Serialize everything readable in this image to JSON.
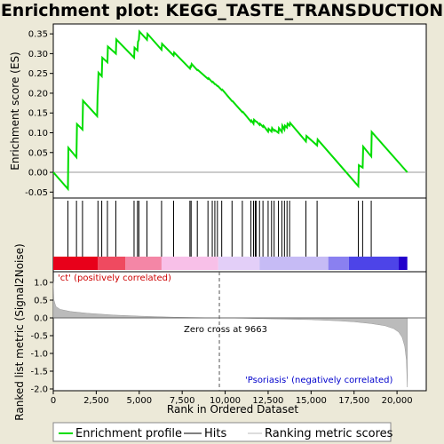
{
  "title": "Enrichment plot: KEGG_TASTE_TRANSDUCTION",
  "chart_data": {
    "type": "line",
    "title": "Enrichment plot: KEGG_TASTE_TRANSDUCTION",
    "top_panel": {
      "ylabel": "Enrichment score (ES)",
      "ylim": [
        -0.065,
        0.375
      ],
      "yticks": [
        -0.05,
        0.0,
        0.05,
        0.1,
        0.15,
        0.2,
        0.25,
        0.3,
        0.35
      ],
      "ytick_labels": [
        "-0.05",
        "0.00",
        "0.05",
        "0.10",
        "0.15",
        "0.20",
        "0.25",
        "0.30",
        "0.35"
      ],
      "series": [
        {
          "name": "Enrichment profile",
          "color": "#00dd00",
          "x": [
            0,
            850,
            880,
            1350,
            1380,
            1700,
            1730,
            2550,
            2580,
            2600,
            2630,
            2820,
            2850,
            3150,
            3180,
            3640,
            3670,
            4700,
            4730,
            4900,
            4930,
            4980,
            5010,
            5450,
            5480,
            6300,
            6330,
            7000,
            7030,
            7950,
            7980,
            8020,
            8050,
            8380,
            8410,
            9000,
            9030,
            9250,
            9280,
            9400,
            9430,
            9550,
            9580,
            9800,
            9830,
            10400,
            10430,
            11000,
            11030,
            11500,
            11530,
            11650,
            11680,
            11800,
            11830,
            12000,
            12030,
            12200,
            12230,
            12500,
            12530,
            12700,
            12730,
            12850,
            12880,
            13100,
            13130,
            13300,
            13330,
            13450,
            13480,
            13600,
            13630,
            13750,
            13780,
            14700,
            14730,
            15350,
            15380,
            17750,
            17780,
            18000,
            18030,
            18500,
            18530,
            20600
          ],
          "y": [
            0.0,
            -0.042,
            0.062,
            0.038,
            0.122,
            0.108,
            0.181,
            0.142,
            0.195,
            0.21,
            0.252,
            0.243,
            0.29,
            0.278,
            0.318,
            0.3,
            0.336,
            0.29,
            0.315,
            0.308,
            0.33,
            0.335,
            0.356,
            0.335,
            0.35,
            0.31,
            0.325,
            0.295,
            0.303,
            0.262,
            0.268,
            0.267,
            0.274,
            0.258,
            0.259,
            0.236,
            0.238,
            0.228,
            0.229,
            0.223,
            0.223,
            0.218,
            0.218,
            0.208,
            0.209,
            0.18,
            0.18,
            0.152,
            0.153,
            0.128,
            0.131,
            0.123,
            0.133,
            0.128,
            0.128,
            0.12,
            0.123,
            0.115,
            0.118,
            0.103,
            0.11,
            0.103,
            0.112,
            0.105,
            0.107,
            0.1,
            0.112,
            0.102,
            0.118,
            0.108,
            0.118,
            0.113,
            0.123,
            0.118,
            0.125,
            0.078,
            0.092,
            0.068,
            0.083,
            -0.035,
            0.018,
            0.012,
            0.065,
            0.04,
            0.102,
            0.0
          ]
        }
      ]
    },
    "hits_panel": {
      "name": "Hits",
      "positions": [
        850,
        1350,
        1700,
        2600,
        2820,
        3150,
        3640,
        4700,
        4900,
        4980,
        5450,
        6300,
        7000,
        7950,
        8020,
        8380,
        9000,
        9250,
        9400,
        9550,
        9800,
        10400,
        11000,
        11500,
        11650,
        11750,
        11800,
        12000,
        12200,
        12500,
        12700,
        12850,
        13100,
        13300,
        13450,
        13600,
        13750,
        14700,
        15350,
        17750,
        18000,
        18500
      ]
    },
    "bottom_panel": {
      "ylabel": "Ranked list metric (Signal2Noise)",
      "ylim": [
        -2.05,
        1.3
      ],
      "yticks": [
        -2.0,
        -1.5,
        -1.0,
        -0.5,
        0.0,
        0.5,
        1.0
      ],
      "ytick_labels": [
        "-2.0",
        "-1.5",
        "-1.0",
        "-0.5",
        "0.0",
        "0.5",
        "1.0"
      ],
      "xlabel": "Rank in Ordered Dataset",
      "xlim": [
        0,
        21700
      ],
      "xticks": [
        0,
        2500,
        5000,
        7500,
        10000,
        12500,
        15000,
        17500,
        20000
      ],
      "xtick_labels": [
        "0",
        "2,500",
        "5,000",
        "7,500",
        "10,000",
        "12,500",
        "15,000",
        "17,500",
        "20,000"
      ],
      "series": [
        {
          "name": "Ranking metric scores",
          "color": "#bbbbbb",
          "x": [
            0,
            40,
            150,
            400,
            1000,
            2000,
            3500,
            5000,
            7000,
            9000,
            9663,
            11000,
            13000,
            15000,
            16500,
            17500,
            18500,
            19300,
            19800,
            20100,
            20300,
            20450,
            20550,
            20600
          ],
          "y": [
            1.02,
            0.5,
            0.32,
            0.24,
            0.18,
            0.13,
            0.08,
            0.05,
            0.02,
            0.006,
            0.0,
            -0.01,
            -0.03,
            -0.05,
            -0.08,
            -0.11,
            -0.16,
            -0.22,
            -0.3,
            -0.4,
            -0.55,
            -0.8,
            -1.2,
            -1.95
          ]
        }
      ],
      "zero_cross_rank": 9663,
      "zero_cross_label": "Zero cross at 9663",
      "pos_label": "'ct' (positively correlated)",
      "neg_label": "'Psoriasis' (negatively correlated)"
    },
    "gradient_bar": {
      "colors": [
        "#e8001a",
        "#ef4a60",
        "#f486a6",
        "#f8c0e8",
        "#e3cff8",
        "#c6bbf5",
        "#8a80f0",
        "#4d44e8",
        "#2200cc"
      ],
      "stops": [
        0,
        2600,
        4200,
        6300,
        9600,
        12000,
        16000,
        17200,
        20100,
        20600
      ]
    },
    "legend": [
      {
        "label": "Enrichment profile",
        "color": "#00dd00"
      },
      {
        "label": "Hits",
        "color": "#000000"
      },
      {
        "label": "Ranking metric scores",
        "color": "#bbbbbb"
      }
    ]
  }
}
